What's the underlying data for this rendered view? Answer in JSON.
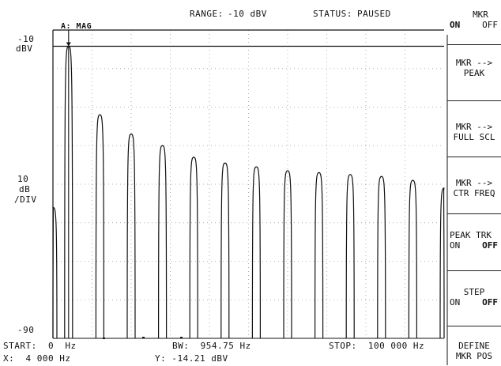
{
  "header": {
    "range_label": "RANGE:",
    "range_value": "-10 dBV",
    "status_label": "STATUS:",
    "status_value": "PAUSED",
    "trace_label": "A: MAG"
  },
  "yaxis": {
    "top_value": "-10",
    "top_unit": "dBV",
    "scale_value": "10",
    "scale_unit": "dB",
    "scale_per": "/DIV",
    "bottom_value": "-90"
  },
  "footer": {
    "start": "START:  0  Hz",
    "bw": "BW:  954.75 Hz",
    "stop": "STOP:  100 000 Hz",
    "marker_x": "X:  4 000 Hz",
    "marker_y": "Y: -14.21 dBV"
  },
  "softkeys": {
    "mkr": {
      "title": "MKR",
      "on": "ON",
      "off": "OFF"
    },
    "mkr_peak": {
      "line1": "MKR -->",
      "line2": "PEAK"
    },
    "mkr_full_scl": {
      "line1": "MKR -->",
      "line2": "FULL SCL"
    },
    "mkr_ctr_freq": {
      "line1": "MKR -->",
      "line2": "CTR FREQ"
    },
    "peak_trk": {
      "title": "PEAK TRK",
      "on": "ON",
      "off": "OFF"
    },
    "step": {
      "title": "STEP",
      "on": "ON",
      "off": "OFF"
    },
    "define": {
      "line1": "DEFINE",
      "line2": "MKR POS"
    }
  },
  "chart_data": {
    "type": "line",
    "x_range_hz": [
      0,
      100000
    ],
    "y_range_dbv": [
      -90,
      -10
    ],
    "grid": true,
    "marker": {
      "x_hz": 4000,
      "y_dbv": -14.21
    },
    "peaks": {
      "x_hz": [
        0,
        4000,
        12000,
        20000,
        28000,
        36000,
        44000,
        52000,
        60000,
        68000,
        76000,
        84000,
        92000,
        100000
      ],
      "y_dbv": [
        -56,
        -14.21,
        -32,
        -37,
        -40,
        -43,
        -44.5,
        -45.5,
        -46.5,
        -47,
        -47.5,
        -48,
        -49,
        -51
      ]
    }
  }
}
